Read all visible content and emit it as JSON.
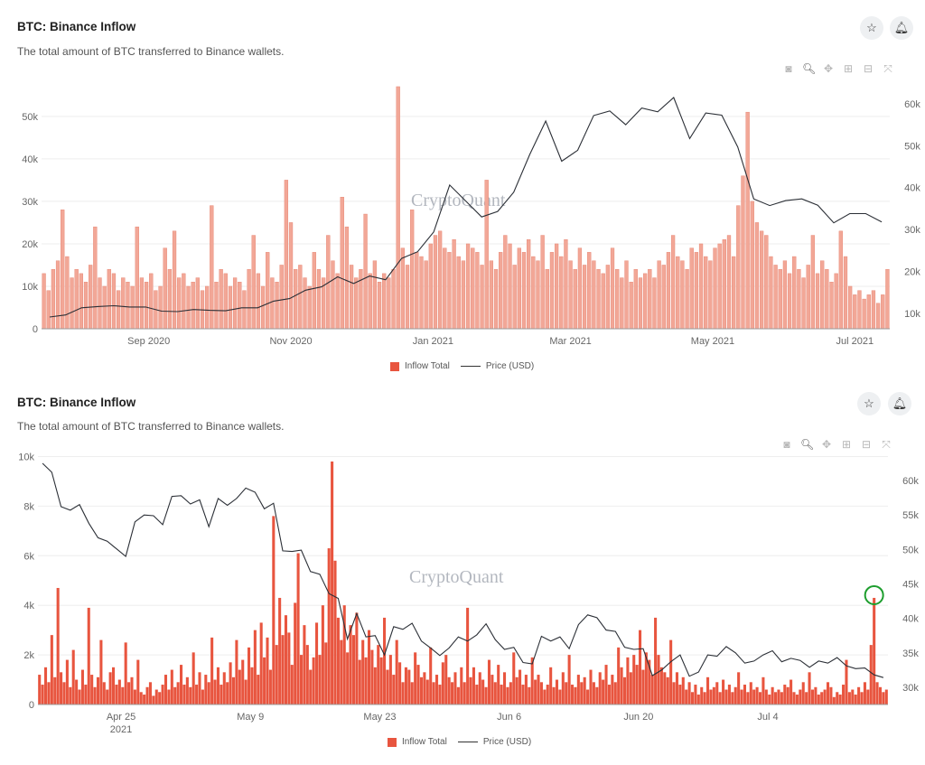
{
  "panels": [
    {
      "title": "BTC: Binance Inflow",
      "subtitle": "The total amount of BTC transferred to Binance wallets.",
      "watermark": "CryptoQuant",
      "legend": {
        "bar": "Inflow Total",
        "line": "Price (USD)"
      },
      "toolbar_icons": [
        "camera-icon",
        "zoom-icon",
        "pan-icon",
        "zoom-in-icon",
        "zoom-out-icon",
        "autoscale-icon"
      ]
    },
    {
      "title": "BTC: Binance Inflow",
      "subtitle": "The total amount of BTC transferred to Binance wallets.",
      "watermark": "CryptoQuant",
      "legend": {
        "bar": "Inflow Total",
        "line": "Price (USD)"
      },
      "toolbar_icons": [
        "camera-icon",
        "zoom-icon",
        "pan-icon",
        "zoom-in-icon",
        "zoom-out-icon",
        "autoscale-icon"
      ]
    }
  ],
  "colors": {
    "bar1": "#f2a797",
    "bar1_edge": "#e57f6b",
    "bar2": "#e8553f",
    "price": "#2b2f36",
    "highlight": "#1e9e2e"
  },
  "chart_data": [
    {
      "type": "bar+line",
      "title": "BTC: Binance Inflow",
      "xlim": [
        "2020-07-17",
        "2021-07-15"
      ],
      "xticks": [
        {
          "label": "Sep 2020",
          "date": "2020-09-01"
        },
        {
          "label": "Nov 2020",
          "date": "2020-11-01"
        },
        {
          "label": "Jan 2021",
          "date": "2021-01-01"
        },
        {
          "label": "Mar 2021",
          "date": "2021-03-01"
        },
        {
          "label": "May 2021",
          "date": "2021-05-01"
        },
        {
          "label": "Jul 2021",
          "date": "2021-07-01"
        }
      ],
      "y_left": {
        "lim": [
          0,
          57200
        ],
        "ticks": [
          {
            "v": 0,
            "label": "0"
          },
          {
            "v": 10000,
            "label": "10k"
          },
          {
            "v": 20000,
            "label": "20k"
          },
          {
            "v": 30000,
            "label": "30k"
          },
          {
            "v": 40000,
            "label": "40k"
          },
          {
            "v": 50000,
            "label": "50k"
          }
        ]
      },
      "y_right": {
        "lim": [
          6300,
          64300
        ],
        "ticks": [
          {
            "v": 10000,
            "label": "10k"
          },
          {
            "v": 20000,
            "label": "20k"
          },
          {
            "v": 30000,
            "label": "30k"
          },
          {
            "v": 40000,
            "label": "40k"
          },
          {
            "v": 50000,
            "label": "50k"
          },
          {
            "v": 60000,
            "label": "60k"
          }
        ]
      },
      "grid": true,
      "series": [
        {
          "name": "Inflow Total",
          "type": "bar",
          "unit": "k BTC",
          "values": [
            13,
            9,
            14,
            16,
            28,
            17,
            12,
            14,
            13,
            11,
            15,
            24,
            12,
            10,
            14,
            13,
            9,
            12,
            11,
            10,
            24,
            12,
            11,
            13,
            9,
            10,
            19,
            14,
            23,
            12,
            13,
            10,
            11,
            12,
            9,
            10,
            29,
            11,
            14,
            13,
            10,
            12,
            11,
            9,
            14,
            22,
            13,
            10,
            18,
            12,
            11,
            15,
            35,
            25,
            14,
            15,
            12,
            10,
            18,
            14,
            12,
            22,
            16,
            13,
            31,
            24,
            15,
            12,
            14,
            27,
            13,
            16,
            11,
            13,
            12,
            14,
            57,
            19,
            15,
            28,
            18,
            17,
            16,
            20,
            22,
            23,
            19,
            18,
            21,
            17,
            16,
            20,
            19,
            18,
            15,
            35,
            16,
            14,
            18,
            22,
            20,
            15,
            19,
            18,
            21,
            17,
            16,
            22,
            14,
            18,
            20,
            17,
            21,
            16,
            14,
            19,
            15,
            18,
            16,
            14,
            13,
            15,
            19,
            14,
            12,
            16,
            11,
            14,
            12,
            13,
            14,
            12,
            16,
            15,
            18,
            22,
            17,
            16,
            14,
            19,
            18,
            20,
            17,
            16,
            19,
            20,
            21,
            22,
            17,
            29,
            36,
            51,
            30,
            25,
            23,
            22,
            17,
            15,
            14,
            16,
            13,
            17,
            14,
            12,
            15,
            22,
            13,
            16,
            14,
            11,
            13,
            23,
            17,
            10,
            8,
            9,
            7,
            8,
            9,
            6,
            8,
            14
          ]
        },
        {
          "name": "Price (USD)",
          "type": "line",
          "unit": "k USD",
          "values": [
            9.1,
            9.6,
            11.3,
            11.6,
            11.8,
            11.5,
            11.5,
            10.5,
            10.4,
            10.9,
            10.7,
            10.6,
            11.3,
            11.3,
            12.9,
            13.5,
            15.5,
            16.3,
            18.7,
            17.1,
            18.9,
            18.0,
            23.1,
            24.7,
            29.4,
            40.6,
            36.8,
            33.0,
            34.3,
            38.9,
            47.9,
            55.9,
            46.3,
            48.9,
            57.2,
            58.3,
            55.0,
            59.0,
            58.1,
            61.5,
            51.7,
            57.8,
            57.3,
            49.7,
            37.3,
            35.7,
            36.9,
            37.3,
            35.8,
            31.6,
            33.8,
            33.8,
            31.8
          ]
        }
      ]
    },
    {
      "type": "bar+line",
      "title": "BTC: Binance Inflow",
      "xlim": [
        "2021-04-16",
        "2021-07-16"
      ],
      "xticks": [
        {
          "label": "Apr 25",
          "sub": "2021",
          "date": "2021-04-25"
        },
        {
          "label": "May 9",
          "date": "2021-05-09"
        },
        {
          "label": "May 23",
          "date": "2021-05-23"
        },
        {
          "label": "Jun 6",
          "date": "2021-06-06"
        },
        {
          "label": "Jun 20",
          "date": "2021-06-20"
        },
        {
          "label": "Jul 4",
          "date": "2021-07-04"
        }
      ],
      "y_left": {
        "lim": [
          0,
          10200
        ],
        "ticks": [
          {
            "v": 0,
            "label": "0"
          },
          {
            "v": 2000,
            "label": "2k"
          },
          {
            "v": 4000,
            "label": "4k"
          },
          {
            "v": 6000,
            "label": "6k"
          },
          {
            "v": 8000,
            "label": "8k"
          },
          {
            "v": 10000,
            "label": "10k"
          }
        ]
      },
      "y_right": {
        "lim": [
          27500,
          64200
        ],
        "ticks": [
          {
            "v": 30000,
            "label": "30k"
          },
          {
            "v": 35000,
            "label": "35k"
          },
          {
            "v": 40000,
            "label": "40k"
          },
          {
            "v": 45000,
            "label": "45k"
          },
          {
            "v": 50000,
            "label": "50k"
          },
          {
            "v": 55000,
            "label": "55k"
          },
          {
            "v": 60000,
            "label": "60k"
          }
        ]
      },
      "grid": true,
      "annotation": {
        "type": "circle",
        "date": "2021-07-15",
        "value": 4300,
        "color": "#1e9e2e"
      },
      "series": [
        {
          "name": "Inflow Total",
          "type": "bar",
          "unit": "BTC",
          "values": [
            1200,
            800,
            1500,
            900,
            2800,
            1100,
            4700,
            1300,
            900,
            1800,
            700,
            2200,
            1000,
            600,
            1400,
            800,
            3900,
            1200,
            700,
            1100,
            2600,
            900,
            600,
            1300,
            1500,
            800,
            1000,
            700,
            2500,
            900,
            1100,
            600,
            1800,
            500,
            400,
            700,
            900,
            350,
            600,
            500,
            800,
            1200,
            600,
            1400,
            700,
            900,
            1600,
            800,
            1100,
            700,
            2100,
            800,
            1300,
            600,
            1200,
            900,
            2700,
            1000,
            1500,
            800,
            1300,
            900,
            1700,
            1100,
            2600,
            1400,
            1800,
            1000,
            2300,
            1500,
            3000,
            1200,
            3300,
            1900,
            2700,
            1400,
            7600,
            2400,
            4300,
            2800,
            3600,
            2900,
            1600,
            4100,
            6100,
            2000,
            3200,
            2400,
            1400,
            1900,
            3300,
            2000,
            4000,
            2500,
            6300,
            9800,
            5800,
            3500,
            2600,
            4000,
            2100,
            3200,
            2800,
            3700,
            1800,
            2600,
            1900,
            3000,
            2200,
            1500,
            2400,
            1900,
            3500,
            1400,
            2000,
            1200,
            2600,
            1700,
            900,
            1500,
            1400,
            900,
            2100,
            1600,
            1100,
            1300,
            1000,
            2300,
            900,
            1200,
            800,
            1700,
            2000,
            1100,
            900,
            1300,
            700,
            1500,
            900,
            3900,
            1100,
            1500,
            800,
            1300,
            1000,
            700,
            1800,
            1200,
            900,
            1600,
            800,
            1300,
            700,
            900,
            2100,
            1100,
            1400,
            800,
            1200,
            700,
            1900,
            1000,
            1200,
            900,
            600,
            800,
            1500,
            700,
            1000,
            600,
            1300,
            900,
            2000,
            800,
            700,
            1200,
            900,
            1100,
            600,
            1400,
            900,
            700,
            1300,
            1000,
            1600,
            800,
            1200,
            900,
            2300,
            1500,
            1100,
            1900,
            1300,
            2000,
            1600,
            3000,
            1400,
            2100,
            1800,
            1200,
            3500,
            2000,
            1500,
            1300,
            1100,
            2600,
            900,
            1300,
            800,
            1100,
            600,
            900,
            500,
            800,
            400,
            700,
            500,
            1100,
            600,
            700,
            900,
            500,
            1000,
            600,
            800,
            500,
            700,
            1300,
            600,
            800,
            500,
            900,
            600,
            700,
            500,
            1100,
            600,
            400,
            700,
            500,
            600,
            500,
            800,
            700,
            1000,
            500,
            400,
            600,
            900,
            500,
            1300,
            600,
            700,
            400,
            500,
            600,
            900,
            700,
            300,
            500,
            400,
            800,
            1800,
            500,
            600,
            400,
            700,
            500,
            900,
            600,
            2400,
            4300,
            900,
            700,
            500,
            600
          ]
        },
        {
          "name": "Price (USD)",
          "type": "line",
          "unit": "k USD",
          "values": [
            62.5,
            61.2,
            56.2,
            55.7,
            56.5,
            53.8,
            51.7,
            51.2,
            50.1,
            49.0,
            54.0,
            55.0,
            54.9,
            53.6,
            57.7,
            57.8,
            56.6,
            57.2,
            53.3,
            57.4,
            56.4,
            57.4,
            58.9,
            58.3,
            55.9,
            56.7,
            49.8,
            49.7,
            49.9,
            46.8,
            46.4,
            43.6,
            42.9,
            37.0,
            40.7,
            37.3,
            37.5,
            34.7,
            38.8,
            38.4,
            39.3,
            36.7,
            35.7,
            34.6,
            35.7,
            37.3,
            36.7,
            37.6,
            39.2,
            36.9,
            35.5,
            35.8,
            33.6,
            33.4,
            37.4,
            36.7,
            37.3,
            35.6,
            39.1,
            40.5,
            40.1,
            38.3,
            38.1,
            35.8,
            35.5,
            35.6,
            31.7,
            32.5,
            33.7,
            34.7,
            31.6,
            32.2,
            34.7,
            34.5,
            35.9,
            35.0,
            33.5,
            33.8,
            34.7,
            35.3,
            33.7,
            34.2,
            33.9,
            32.9,
            33.8,
            33.5,
            34.3,
            33.1,
            32.7,
            32.8,
            31.8,
            31.4
          ]
        }
      ]
    }
  ]
}
